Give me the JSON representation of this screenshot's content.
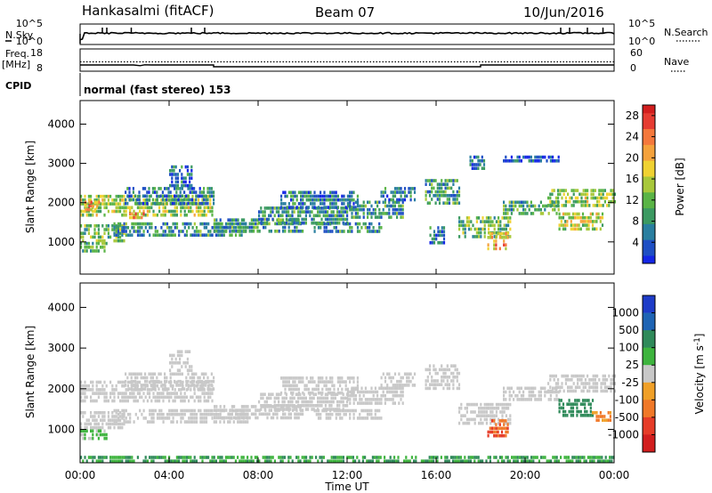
{
  "header": {
    "station": "Hankasalmi (fitACF)",
    "beam": "Beam 07",
    "date": "10/Jun/2016"
  },
  "left_labels": {
    "nsky": "N.Sky",
    "freq_line1": "Freq.",
    "freq_line2": "[MHz]",
    "cpid": "CPID"
  },
  "right_labels": {
    "nsearch": "N.Search",
    "nave": "Nave"
  },
  "cpid_text": "normal (fast stereo) 153",
  "noise_panel": {
    "ticks_left": [
      "10^5",
      "10^0"
    ],
    "ticks_right": [
      "10^5",
      "10^0"
    ]
  },
  "freq_panel": {
    "ticks_left": [
      "18",
      "8"
    ],
    "ticks_right": [
      "60",
      "0"
    ],
    "freq_mhz": [
      {
        "t": 0.0,
        "v": 10.8
      },
      {
        "t": 2.4,
        "v": 10.8
      },
      {
        "t": 2.7,
        "v": 10.5
      },
      {
        "t": 2.9,
        "v": 10.9
      },
      {
        "t": 3.2,
        "v": 10.8
      },
      {
        "t": 6.0,
        "v": 10.8
      },
      {
        "t": 6.0,
        "v": 10.0
      },
      {
        "t": 18.0,
        "v": 10.0
      },
      {
        "t": 18.0,
        "v": 10.8
      },
      {
        "t": 24.0,
        "v": 10.8
      }
    ],
    "nave_level": 12.2
  },
  "x_axis": {
    "label": "Time UT",
    "range_hours": [
      0,
      24
    ],
    "ticks": [
      "00:00",
      "04:00",
      "08:00",
      "12:00",
      "16:00",
      "20:00",
      "00:00"
    ]
  },
  "y_axis": {
    "label": "Slant Range [km]",
    "ticks": [
      "1000",
      "2000",
      "3000",
      "4000"
    ],
    "range_km": [
      180,
      4600
    ]
  },
  "chart_data": [
    {
      "type": "heatmap",
      "panel": "power",
      "xlabel": "Time UT",
      "ylabel": "Slant Range [km]",
      "xlim_hours": [
        0,
        24
      ],
      "ylim_km": [
        180,
        4600
      ],
      "colorbar": {
        "label": "Power [dB]",
        "ticks": [
          "4",
          "8",
          "12",
          "16",
          "20",
          "24",
          "28"
        ],
        "range": [
          0,
          30
        ],
        "colors": [
          "#1426e6",
          "#1f4fc4",
          "#2a7fa0",
          "#3c9a62",
          "#5ab446",
          "#a8c83a",
          "#f0d232",
          "#f5a23c",
          "#f5783c",
          "#e63c32",
          "#d21e1e"
        ]
      },
      "regions": [
        {
          "t0": 0.0,
          "t1": 5.9,
          "r0": 1650,
          "r1": 2200,
          "value": 14
        },
        {
          "t0": 0.2,
          "t1": 0.9,
          "r0": 1850,
          "r1": 2050,
          "value": 22
        },
        {
          "t0": 2.2,
          "t1": 2.9,
          "r0": 1650,
          "r1": 1850,
          "value": 21
        },
        {
          "t0": 0.0,
          "t1": 2.0,
          "r0": 1050,
          "r1": 1450,
          "value": 12
        },
        {
          "t0": 0.0,
          "t1": 1.2,
          "r0": 800,
          "r1": 1000,
          "value": 11
        },
        {
          "t0": 1.5,
          "t1": 7.5,
          "r0": 1150,
          "r1": 1500,
          "value": 8
        },
        {
          "t0": 2.0,
          "t1": 6.0,
          "r0": 2000,
          "r1": 2400,
          "value": 6
        },
        {
          "t0": 4.0,
          "t1": 5.0,
          "r0": 2450,
          "r1": 2950,
          "value": 5
        },
        {
          "t0": 6.0,
          "t1": 10.0,
          "r0": 1250,
          "r1": 1600,
          "value": 9
        },
        {
          "t0": 8.0,
          "t1": 12.0,
          "r0": 1500,
          "r1": 1900,
          "value": 8
        },
        {
          "t0": 9.0,
          "t1": 12.5,
          "r0": 1900,
          "r1": 2300,
          "value": 6
        },
        {
          "t0": 10.5,
          "t1": 13.5,
          "r0": 1250,
          "r1": 1500,
          "value": 8
        },
        {
          "t0": 12.0,
          "t1": 14.5,
          "r0": 1600,
          "r1": 2050,
          "value": 8
        },
        {
          "t0": 13.5,
          "t1": 15.0,
          "r0": 2100,
          "r1": 2400,
          "value": 6
        },
        {
          "t0": 15.5,
          "t1": 17.0,
          "r0": 2000,
          "r1": 2600,
          "value": 9
        },
        {
          "t0": 15.7,
          "t1": 16.4,
          "r0": 1000,
          "r1": 1400,
          "value": 6
        },
        {
          "t0": 17.0,
          "t1": 19.3,
          "r0": 1150,
          "r1": 1650,
          "value": 12
        },
        {
          "t0": 18.3,
          "t1": 19.2,
          "r0": 800,
          "r1": 1250,
          "value": 20
        },
        {
          "t0": 19.0,
          "t1": 21.5,
          "r0": 1750,
          "r1": 2050,
          "value": 10
        },
        {
          "t0": 21.0,
          "t1": 24.0,
          "r0": 1900,
          "r1": 2350,
          "value": 14
        },
        {
          "t0": 21.5,
          "t1": 23.5,
          "r0": 1300,
          "r1": 1750,
          "value": 16
        },
        {
          "t0": 17.5,
          "t1": 18.2,
          "r0": 2900,
          "r1": 3200,
          "value": 4
        },
        {
          "t0": 19.0,
          "t1": 21.5,
          "r0": 3050,
          "r1": 3200,
          "value": 4
        }
      ]
    },
    {
      "type": "heatmap",
      "panel": "velocity",
      "xlabel": "Time UT",
      "ylabel": "Slant Range [km]",
      "xlim_hours": [
        0,
        24
      ],
      "ylim_km": [
        180,
        4600
      ],
      "colorbar": {
        "label": "Velocity [m s^-1]",
        "ticks": [
          "1000",
          "500",
          "100",
          "25",
          "-25",
          "-100",
          "-500",
          "-1000"
        ],
        "bands": [
          "#1e3cc8",
          "#1e64b4",
          "#2f8a5a",
          "#3eb43e",
          "#c8c8c8",
          "#f0a028",
          "#f07828",
          "#e63c28",
          "#d21e1e"
        ]
      },
      "regions": [
        {
          "t0": 0.0,
          "t1": 5.9,
          "r0": 1650,
          "r1": 2200,
          "value": 0
        },
        {
          "t0": 0.0,
          "t1": 2.0,
          "r0": 1050,
          "r1": 1450,
          "value": 0
        },
        {
          "t0": 0.0,
          "t1": 1.2,
          "r0": 800,
          "r1": 1000,
          "value": 30
        },
        {
          "t0": 1.5,
          "t1": 7.5,
          "r0": 1150,
          "r1": 1500,
          "value": 0
        },
        {
          "t0": 2.0,
          "t1": 6.0,
          "r0": 2000,
          "r1": 2400,
          "value": 0
        },
        {
          "t0": 4.0,
          "t1": 5.0,
          "r0": 2450,
          "r1": 2950,
          "value": 0
        },
        {
          "t0": 6.0,
          "t1": 10.0,
          "r0": 1250,
          "r1": 1600,
          "value": 0
        },
        {
          "t0": 8.0,
          "t1": 12.0,
          "r0": 1500,
          "r1": 1900,
          "value": 0
        },
        {
          "t0": 9.0,
          "t1": 12.5,
          "r0": 1900,
          "r1": 2300,
          "value": 0
        },
        {
          "t0": 10.5,
          "t1": 13.5,
          "r0": 1250,
          "r1": 1500,
          "value": 0
        },
        {
          "t0": 12.0,
          "t1": 14.5,
          "r0": 1600,
          "r1": 2050,
          "value": 0
        },
        {
          "t0": 13.5,
          "t1": 15.0,
          "r0": 2100,
          "r1": 2400,
          "value": 0
        },
        {
          "t0": 15.5,
          "t1": 17.0,
          "r0": 2000,
          "r1": 2600,
          "value": 0
        },
        {
          "t0": 17.0,
          "t1": 19.3,
          "r0": 1150,
          "r1": 1650,
          "value": 0
        },
        {
          "t0": 18.3,
          "t1": 19.2,
          "r0": 800,
          "r1": 1250,
          "value": -300
        },
        {
          "t0": 19.0,
          "t1": 21.5,
          "r0": 1750,
          "r1": 2050,
          "value": 0
        },
        {
          "t0": 21.0,
          "t1": 24.0,
          "r0": 1900,
          "r1": 2350,
          "value": 0
        },
        {
          "t0": 21.5,
          "t1": 23.0,
          "r0": 1300,
          "r1": 1750,
          "value": 150
        },
        {
          "t0": 23.0,
          "t1": 23.8,
          "r0": 1200,
          "r1": 1450,
          "value": -60
        },
        {
          "t0": 0.0,
          "t1": 24.0,
          "r0": 200,
          "r1": 350,
          "value": 60
        }
      ]
    }
  ]
}
